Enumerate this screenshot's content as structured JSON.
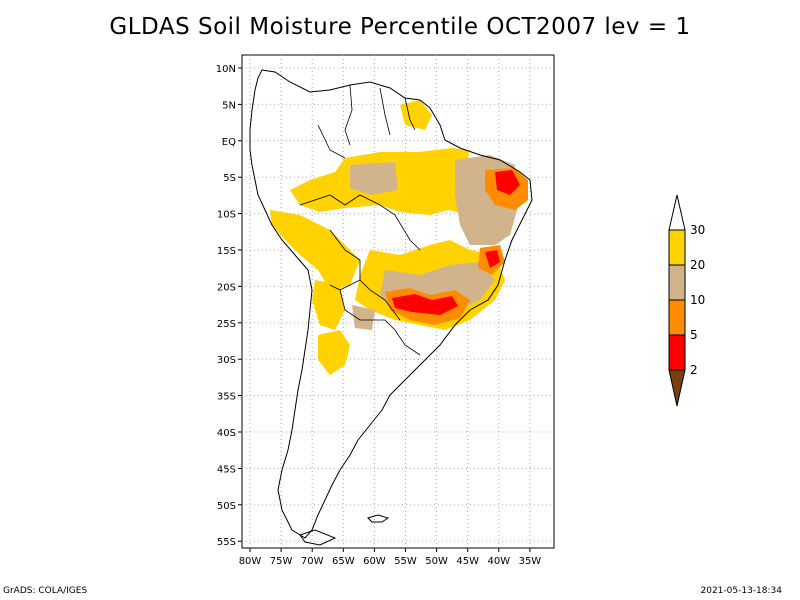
{
  "title": "GLDAS Soil Moisture Percentile OCT2007 lev = 1",
  "footer": {
    "left": "GrADS: COLA/IGES",
    "right": "2021-05-13-18:34"
  },
  "map": {
    "lat_labels": [
      "10N",
      "5N",
      "EQ",
      "5S",
      "10S",
      "15S",
      "20S",
      "25S",
      "30S",
      "35S",
      "40S",
      "45S",
      "50S",
      "55S"
    ],
    "lon_labels": [
      "80W",
      "75W",
      "70W",
      "65W",
      "60W",
      "55W",
      "50W",
      "45W",
      "40W",
      "35W"
    ]
  },
  "colorbar": {
    "levels": [
      "2",
      "5",
      "10",
      "20",
      "30"
    ],
    "colors": [
      "#7a3e10",
      "#ff0000",
      "#ff8c00",
      "#d2b48c",
      "#ffd200",
      "#ffffff"
    ]
  }
}
